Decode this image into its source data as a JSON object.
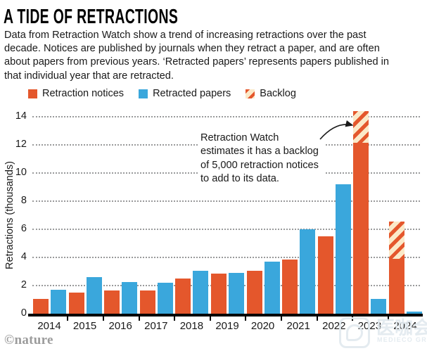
{
  "header": {
    "title": "A TIDE OF RETRACTIONS",
    "subtitle_lines": [
      "Data from Retraction Watch show a trend of increasing retractions over the past",
      "decade. Notices are published by journals when they retract a paper, and are often",
      "about papers from previous years. ‘Retracted papers’ represents papers published in",
      "that individual year that are retracted."
    ]
  },
  "legend": {
    "items": [
      {
        "label": "Retraction notices",
        "swatch": "orange-square-icon"
      },
      {
        "label": "Retracted papers",
        "swatch": "blue-square-icon"
      },
      {
        "label": "Backlog",
        "swatch": "hatched-square-icon"
      }
    ]
  },
  "annotation": {
    "lines": [
      "Retraction Watch",
      "estimates it has a backlog",
      "of 5,000 retraction notices",
      "to add to its data."
    ]
  },
  "chart_data": {
    "type": "bar",
    "title": "A TIDE OF RETRACTIONS",
    "categories": [
      "2014",
      "2015",
      "2016",
      "2017",
      "2018",
      "2019",
      "2020",
      "2021",
      "2022",
      "2023",
      "2024"
    ],
    "series": [
      {
        "name": "Retraction notices",
        "color": "#E4572C",
        "values": [
          1.05,
          1.5,
          1.65,
          1.65,
          2.5,
          2.85,
          3.05,
          3.85,
          5.5,
          12.15,
          3.9
        ]
      },
      {
        "name": "Retracted papers",
        "color": "#3AA7DC",
        "values": [
          1.7,
          2.6,
          2.25,
          2.2,
          3.05,
          2.9,
          3.7,
          6.0,
          9.2,
          1.05,
          0.15
        ]
      },
      {
        "name": "Backlog",
        "pattern": "diagonal-stripes",
        "stripe_color": "#E4572C",
        "bg_color": "#FBE9C8",
        "stacked_on": "Retraction notices",
        "values": [
          0,
          0,
          0,
          0,
          0,
          0,
          0,
          0,
          0,
          2.25,
          2.65
        ]
      }
    ],
    "xlabel": "",
    "ylabel": "Retractions (thousands)",
    "ylim": [
      0,
      14
    ],
    "yticks": [
      0,
      2,
      4,
      6,
      8,
      10,
      12,
      14
    ],
    "grid": "horizontal-dotted",
    "legend_position": "top-left"
  },
  "footer": {
    "credit": "©nature"
  },
  "watermark": {
    "text": "医咖会",
    "subtext": "MEDIECO GROUP"
  }
}
